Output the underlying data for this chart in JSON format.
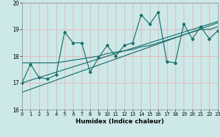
{
  "xlabel": "Humidex (Indice chaleur)",
  "xlim": [
    0,
    23
  ],
  "ylim": [
    16,
    20
  ],
  "yticks": [
    16,
    17,
    18,
    19,
    20
  ],
  "xticks": [
    0,
    1,
    2,
    3,
    4,
    5,
    6,
    7,
    8,
    9,
    10,
    11,
    12,
    13,
    14,
    15,
    16,
    17,
    18,
    19,
    20,
    21,
    22,
    23
  ],
  "bg_color": "#cce8e8",
  "grid_color": "#e8b0b0",
  "line_color": "#1a7070",
  "series0_x": [
    0,
    1,
    2,
    3,
    4,
    5,
    6,
    7,
    8,
    9,
    10,
    11,
    12,
    13,
    14,
    15,
    16,
    17,
    18,
    19,
    20,
    21,
    22,
    23
  ],
  "series0_y": [
    17.0,
    17.7,
    17.2,
    17.15,
    17.3,
    18.9,
    18.5,
    18.5,
    17.4,
    17.95,
    18.4,
    18.0,
    18.4,
    18.5,
    19.55,
    19.2,
    19.65,
    17.8,
    17.75,
    19.2,
    18.65,
    19.1,
    18.65,
    18.95
  ],
  "series1_x": [
    0,
    23
  ],
  "series1_y": [
    17.0,
    19.3
  ],
  "series2_x": [
    0,
    23
  ],
  "series2_y": [
    16.65,
    19.25
  ],
  "series3_x": [
    0,
    23
  ],
  "series3_y": [
    17.75,
    19.1
  ],
  "series3_full_x": [
    0,
    1,
    2,
    3,
    4,
    5,
    6,
    7,
    8,
    9,
    10,
    11,
    12,
    13,
    14,
    15,
    16,
    17,
    18,
    19,
    20,
    21,
    22,
    23
  ],
  "series3_full_y": [
    17.75,
    17.75,
    17.75,
    17.75,
    17.75,
    17.8,
    17.85,
    17.9,
    17.95,
    18.0,
    18.1,
    18.15,
    18.2,
    18.25,
    18.35,
    18.4,
    18.5,
    18.6,
    18.7,
    18.8,
    18.9,
    19.0,
    19.0,
    19.1
  ]
}
